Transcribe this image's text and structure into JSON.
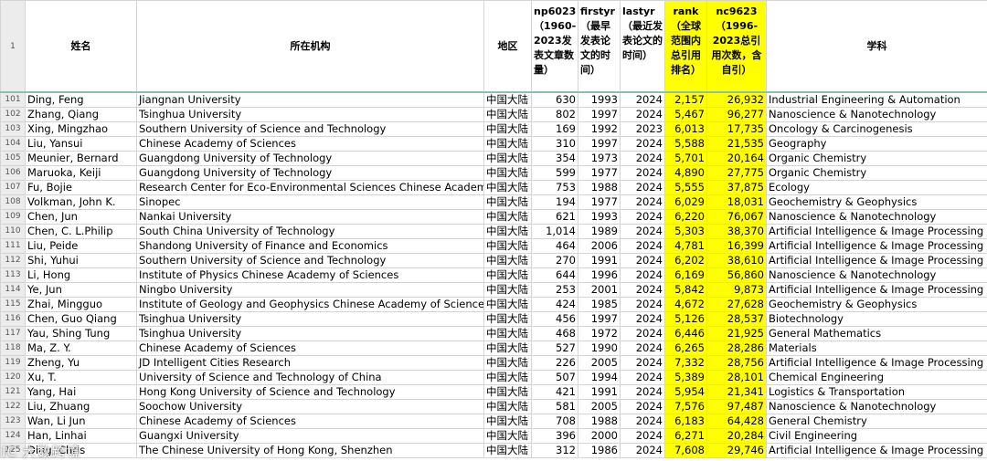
{
  "headers": {
    "row": "1",
    "name": "姓名",
    "institution": "所在机构",
    "region": "地区",
    "np": "np6023（1960-2023发表文章数量）",
    "firstyr": "firstyr（最早发表论文的时间）",
    "lastyr": "lastyr（最近发表论文的时间）",
    "rank": "rank（全球范围内总引用排名）",
    "nc": "nc9623（1996-2023总引用次数，含自引）",
    "field": "学科"
  },
  "rows": [
    {
      "row": "101",
      "name": "Ding, Feng",
      "inst": "Jiangnan University",
      "region": "中国大陆",
      "np": "630",
      "first": "1993",
      "last": "2024",
      "rank": "2,157",
      "nc": "26,932",
      "field": "Industrial Engineering & Automation"
    },
    {
      "row": "102",
      "name": "Zhang, Qiang",
      "inst": "Tsinghua University",
      "region": "中国大陆",
      "np": "802",
      "first": "1997",
      "last": "2024",
      "rank": "5,467",
      "nc": "96,277",
      "field": "Nanoscience & Nanotechnology"
    },
    {
      "row": "103",
      "name": "Xing, Mingzhao",
      "inst": "Southern University of Science and Technology",
      "region": "中国大陆",
      "np": "169",
      "first": "1992",
      "last": "2023",
      "rank": "6,013",
      "nc": "17,735",
      "field": "Oncology & Carcinogenesis"
    },
    {
      "row": "104",
      "name": "Liu, Yansui",
      "inst": "Chinese Academy of Sciences",
      "region": "中国大陆",
      "np": "310",
      "first": "1997",
      "last": "2024",
      "rank": "5,588",
      "nc": "21,535",
      "field": "Geography"
    },
    {
      "row": "105",
      "name": "Meunier, Bernard",
      "inst": "Guangdong University of Technology",
      "region": "中国大陆",
      "np": "354",
      "first": "1973",
      "last": "2024",
      "rank": "5,701",
      "nc": "20,164",
      "field": "Organic Chemistry"
    },
    {
      "row": "106",
      "name": "Maruoka, Keiji",
      "inst": "Guangdong University of Technology",
      "region": "中国大陆",
      "np": "599",
      "first": "1977",
      "last": "2024",
      "rank": "4,890",
      "nc": "27,775",
      "field": "Organic Chemistry"
    },
    {
      "row": "107",
      "name": "Fu, Bojie",
      "inst": "Research Center for Eco-Environmental Sciences Chinese Academy",
      "region": "中国大陆",
      "np": "753",
      "first": "1988",
      "last": "2024",
      "rank": "5,555",
      "nc": "37,875",
      "field": "Ecology"
    },
    {
      "row": "108",
      "name": "Volkman, John K.",
      "inst": "Sinopec",
      "region": "中国大陆",
      "np": "194",
      "first": "1977",
      "last": "2024",
      "rank": "6,029",
      "nc": "18,031",
      "field": "Geochemistry & Geophysics"
    },
    {
      "row": "109",
      "name": "Chen, Jun",
      "inst": "Nankai University",
      "region": "中国大陆",
      "np": "621",
      "first": "1993",
      "last": "2024",
      "rank": "6,220",
      "nc": "76,067",
      "field": "Nanoscience & Nanotechnology"
    },
    {
      "row": "110",
      "name": "Chen, C. L.Philip",
      "inst": "South China University of Technology",
      "region": "中国大陆",
      "np": "1,014",
      "first": "1989",
      "last": "2024",
      "rank": "5,303",
      "nc": "38,370",
      "field": "Artificial Intelligence & Image Processing"
    },
    {
      "row": "111",
      "name": "Liu, Peide",
      "inst": "Shandong University of Finance and Economics",
      "region": "中国大陆",
      "np": "464",
      "first": "2006",
      "last": "2024",
      "rank": "4,781",
      "nc": "16,399",
      "field": "Artificial Intelligence & Image Processing"
    },
    {
      "row": "112",
      "name": "Shi, Yuhui",
      "inst": "Southern University of Science and Technology",
      "region": "中国大陆",
      "np": "270",
      "first": "1991",
      "last": "2024",
      "rank": "6,202",
      "nc": "38,610",
      "field": "Artificial Intelligence & Image Processing"
    },
    {
      "row": "113",
      "name": "Li, Hong",
      "inst": "Institute of Physics Chinese Academy of Sciences",
      "region": "中国大陆",
      "np": "644",
      "first": "1996",
      "last": "2024",
      "rank": "6,169",
      "nc": "56,860",
      "field": "Nanoscience & Nanotechnology"
    },
    {
      "row": "114",
      "name": "Ye, Jun",
      "inst": "Ningbo University",
      "region": "中国大陆",
      "np": "253",
      "first": "2001",
      "last": "2024",
      "rank": "5,842",
      "nc": "9,873",
      "field": "Artificial Intelligence & Image Processing"
    },
    {
      "row": "115",
      "name": "Zhai, Mingguo",
      "inst": "Institute of Geology and Geophysics Chinese Academy of Sciences",
      "region": "中国大陆",
      "np": "424",
      "first": "1985",
      "last": "2024",
      "rank": "4,672",
      "nc": "27,628",
      "field": "Geochemistry & Geophysics"
    },
    {
      "row": "116",
      "name": "Chen, Guo Qiang",
      "inst": "Tsinghua University",
      "region": "中国大陆",
      "np": "456",
      "first": "1997",
      "last": "2024",
      "rank": "5,126",
      "nc": "28,537",
      "field": "Biotechnology"
    },
    {
      "row": "117",
      "name": "Yau, Shing Tung",
      "inst": "Tsinghua University",
      "region": "中国大陆",
      "np": "468",
      "first": "1972",
      "last": "2024",
      "rank": "6,446",
      "nc": "21,925",
      "field": "General Mathematics"
    },
    {
      "row": "118",
      "name": "Ma, Z. Y.",
      "inst": "Chinese Academy of Sciences",
      "region": "中国大陆",
      "np": "527",
      "first": "1990",
      "last": "2024",
      "rank": "6,265",
      "nc": "28,286",
      "field": "Materials"
    },
    {
      "row": "119",
      "name": "Zheng, Yu",
      "inst": "JD Intelligent Cities Research",
      "region": "中国大陆",
      "np": "226",
      "first": "2005",
      "last": "2024",
      "rank": "7,332",
      "nc": "28,756",
      "field": "Artificial Intelligence & Image Processing"
    },
    {
      "row": "120",
      "name": "Xu, T.",
      "inst": "University of Science and Technology of China",
      "region": "中国大陆",
      "np": "507",
      "first": "1994",
      "last": "2024",
      "rank": "5,389",
      "nc": "28,101",
      "field": "Chemical Engineering"
    },
    {
      "row": "121",
      "name": "Yang, Hai",
      "inst": "Hong Kong University of Science and Technology",
      "region": "中国大陆",
      "np": "421",
      "first": "1991",
      "last": "2024",
      "rank": "5,954",
      "nc": "21,341",
      "field": "Logistics & Transportation"
    },
    {
      "row": "122",
      "name": "Liu, Zhuang",
      "inst": "Soochow University",
      "region": "中国大陆",
      "np": "581",
      "first": "2005",
      "last": "2024",
      "rank": "7,576",
      "nc": "97,487",
      "field": "Nanoscience & Nanotechnology"
    },
    {
      "row": "123",
      "name": "Wan, Li Jun",
      "inst": "Chinese Academy of Sciences",
      "region": "中国大陆",
      "np": "708",
      "first": "1988",
      "last": "2024",
      "rank": "6,183",
      "nc": "64,428",
      "field": "General Chemistry"
    },
    {
      "row": "124",
      "name": "Han, Linhai",
      "inst": "Guangxi University",
      "region": "中国大陆",
      "np": "396",
      "first": "2000",
      "last": "2024",
      "rank": "6,271",
      "nc": "20,284",
      "field": "Civil Engineering"
    },
    {
      "row": "125",
      "name": "Ding, Chris",
      "inst": "The Chinese University of Hong Kong, Shenzhen",
      "region": "中国大陆",
      "np": "312",
      "first": "1986",
      "last": "2024",
      "rank": "7,608",
      "nc": "29,746",
      "field": "Artificial Intelligence & Image Processing"
    }
  ],
  "watermark": "IC 大数跨境",
  "colors": {
    "highlight": "#ffff00",
    "rownum_bg": "#ececec",
    "grid": "#d4d4d4"
  }
}
